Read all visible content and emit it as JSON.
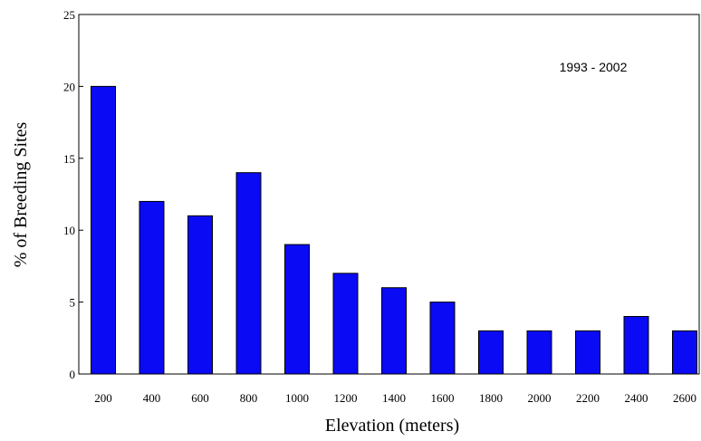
{
  "chart_data": {
    "type": "bar",
    "title": "",
    "xlabel": "Elevation (meters)",
    "ylabel": "% of Breeding Sites",
    "annotation": "1993 - 2002",
    "categories": [
      "200",
      "400",
      "600",
      "800",
      "1000",
      "1200",
      "1400",
      "1600",
      "1800",
      "2000",
      "2200",
      "2400",
      "2600"
    ],
    "values": [
      20,
      12,
      11,
      14,
      9,
      7,
      6,
      5,
      3,
      3,
      3,
      4,
      3
    ],
    "ylim": [
      0,
      25
    ],
    "yticks": [
      0,
      5,
      10,
      15,
      20,
      25
    ],
    "grid": false,
    "legend": "none",
    "colors": {
      "bar_fill": "#0a0af5",
      "bar_stroke": "#000000",
      "axis": "#000000",
      "background": "#ffffff"
    }
  }
}
